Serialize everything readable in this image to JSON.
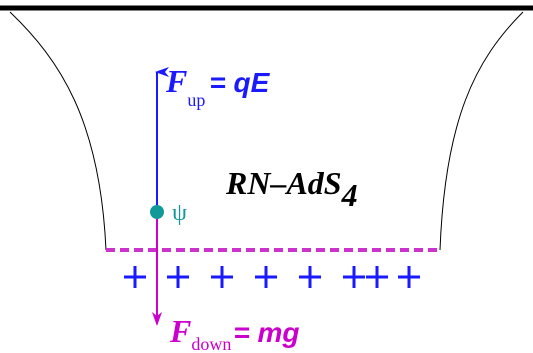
{
  "labels": {
    "force_up": {
      "symbol": "F",
      "subscript": "up",
      "equation": "= qE"
    },
    "force_down": {
      "symbol": "F",
      "subscript": "down",
      "equation": "= mg"
    },
    "spacetime": {
      "name": "RN–AdS",
      "subscript": "4"
    },
    "field": "ψ"
  }
}
